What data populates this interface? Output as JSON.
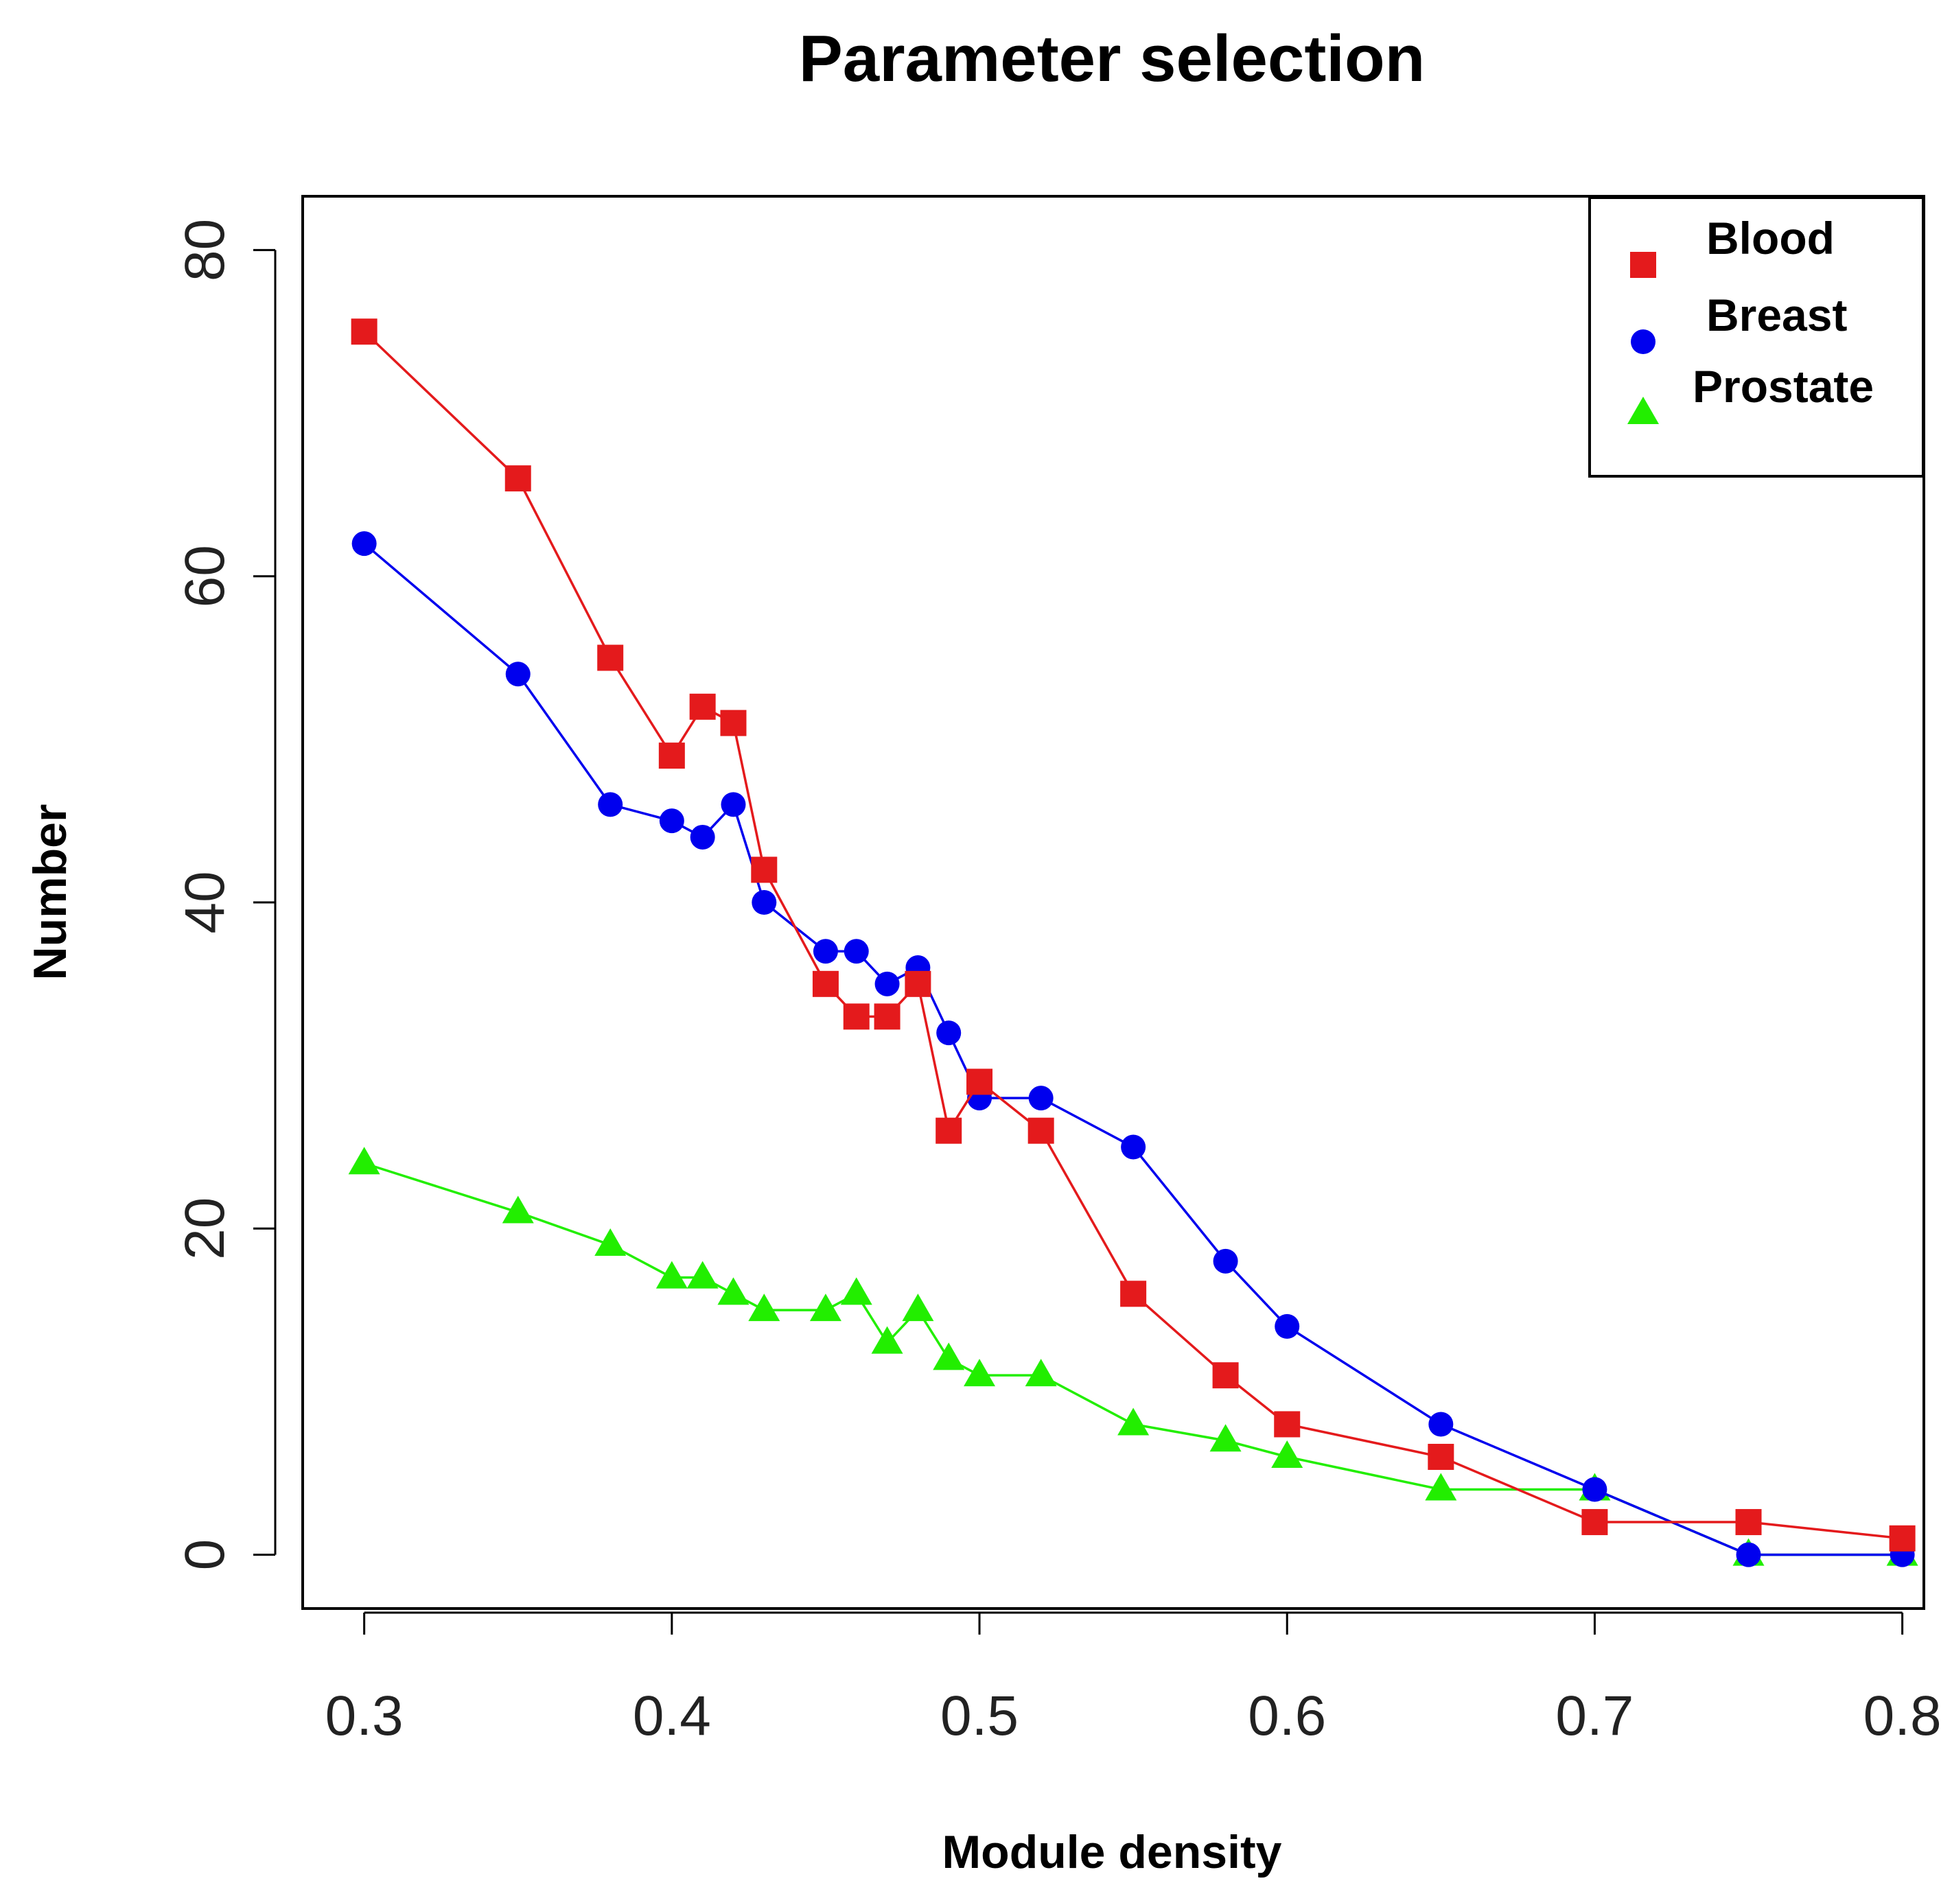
{
  "chart_data": {
    "type": "line",
    "title": "Parameter selection",
    "xlabel": "Module density",
    "ylabel": "Number",
    "xlim": [
      0.28,
      0.807
    ],
    "ylim": [
      -3.3,
      83.3
    ],
    "x_ticks": [
      0.3,
      0.4,
      0.5,
      0.6,
      0.7,
      0.8
    ],
    "x_tick_labels": [
      "0.3",
      "0.4",
      "0.5",
      "0.6",
      "0.7",
      "0.8"
    ],
    "y_ticks": [
      0,
      20,
      40,
      60,
      80
    ],
    "y_tick_labels": [
      "0",
      "20",
      "40",
      "60",
      "80"
    ],
    "legend_position": "top-right",
    "series": [
      {
        "name": "Blood",
        "color": "#e41a1c",
        "marker": "square",
        "x": [
          0.3,
          0.35,
          0.38,
          0.4,
          0.41,
          0.42,
          0.43,
          0.45,
          0.46,
          0.47,
          0.48,
          0.49,
          0.5,
          0.52,
          0.55,
          0.58,
          0.6,
          0.65,
          0.7,
          0.75,
          0.8
        ],
        "y": [
          75,
          66,
          55,
          49,
          52,
          51,
          42,
          35,
          33,
          33,
          35,
          26,
          29,
          26,
          16,
          11,
          8,
          6,
          2,
          2,
          1
        ]
      },
      {
        "name": "Breast",
        "color": "#0000ee",
        "marker": "circle",
        "x": [
          0.3,
          0.35,
          0.38,
          0.4,
          0.41,
          0.42,
          0.43,
          0.45,
          0.46,
          0.47,
          0.48,
          0.49,
          0.5,
          0.52,
          0.55,
          0.58,
          0.6,
          0.65,
          0.7,
          0.75,
          0.8
        ],
        "y": [
          62,
          54,
          46,
          45,
          44,
          46,
          40,
          37,
          37,
          35,
          36,
          32,
          28,
          28,
          25,
          18,
          14,
          8,
          4,
          0,
          0
        ]
      },
      {
        "name": "Prostate",
        "color": "#22ee00",
        "marker": "triangle",
        "x": [
          0.3,
          0.35,
          0.38,
          0.4,
          0.41,
          0.42,
          0.43,
          0.45,
          0.46,
          0.47,
          0.48,
          0.49,
          0.5,
          0.52,
          0.55,
          0.58,
          0.6,
          0.65,
          0.7,
          0.75,
          0.8
        ],
        "y": [
          24,
          21,
          19,
          17,
          17,
          16,
          15,
          15,
          16,
          13,
          15,
          12,
          11,
          11,
          8,
          7,
          6,
          4,
          4,
          0,
          0
        ]
      }
    ]
  }
}
